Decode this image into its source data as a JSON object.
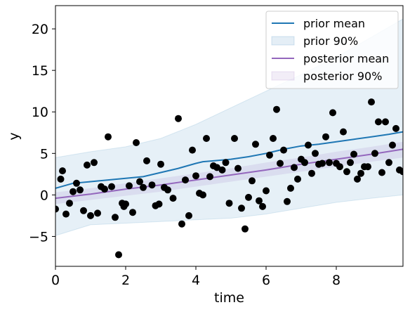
{
  "chart_data": {
    "type": "line",
    "title": "",
    "xlabel": "time",
    "ylabel": "y",
    "xlim": [
      0,
      9.9
    ],
    "ylim": [
      -8.6,
      22.8
    ],
    "xticks": [
      0,
      2,
      4,
      6,
      8
    ],
    "yticks": [
      -5,
      0,
      5,
      10,
      15,
      20
    ],
    "xtick_labels": [
      "0",
      "2",
      "4",
      "6",
      "8"
    ],
    "ytick_labels": [
      "−5",
      "0",
      "5",
      "10",
      "15",
      "20"
    ],
    "grid": false,
    "legend_position": "top-right",
    "colors": {
      "prior": "#1f77b4",
      "prior_band": "#1f77b4",
      "posterior": "#9467bd",
      "posterior_band": "#9467bd",
      "points": "#000000"
    },
    "legend": [
      {
        "label": "prior mean",
        "kind": "line",
        "color": "#1f77b4"
      },
      {
        "label": "prior 90%",
        "kind": "band",
        "color": "#1f77b4"
      },
      {
        "label": "posterior mean",
        "kind": "line",
        "color": "#9467bd"
      },
      {
        "label": "posterior 90%",
        "kind": "band",
        "color": "#9467bd"
      }
    ],
    "prior_mean": {
      "x": [
        0,
        0.5,
        1,
        1.5,
        2,
        2.5,
        3,
        3.5,
        4,
        4.2,
        4.5,
        5,
        5.5,
        6,
        6.5,
        7,
        7.5,
        8,
        8.5,
        9,
        9.5,
        9.9
      ],
      "y": [
        0.8,
        1.4,
        1.6,
        1.8,
        2.0,
        2.2,
        2.7,
        3.2,
        3.8,
        4.0,
        4.1,
        4.3,
        4.6,
        5.0,
        5.5,
        5.9,
        6.1,
        6.4,
        6.7,
        7.0,
        7.3,
        7.6
      ]
    },
    "prior_band": {
      "x": [
        0,
        1,
        2,
        3,
        4,
        5,
        6,
        7,
        8,
        9,
        9.9
      ],
      "lower": [
        -4.9,
        -3.6,
        -3.4,
        -3.2,
        -3.0,
        -2.8,
        -2.3,
        -1.6,
        -0.9,
        -0.4,
        0.0
      ],
      "upper": [
        4.5,
        5.2,
        5.8,
        6.8,
        8.5,
        10.5,
        12.5,
        14.5,
        16.6,
        19.0,
        21.2
      ]
    },
    "posterior_mean": {
      "x": [
        0,
        1,
        2,
        3,
        4,
        5,
        6,
        7,
        8,
        9,
        9.9
      ],
      "y": [
        -0.4,
        0.1,
        0.7,
        1.2,
        1.8,
        2.4,
        3.0,
        3.7,
        4.3,
        4.9,
        5.5
      ]
    },
    "posterior_band": {
      "x": [
        0,
        1,
        2,
        3,
        4,
        5,
        6,
        7,
        8,
        9,
        9.9
      ],
      "lower": [
        -1.1,
        -0.6,
        -0.1,
        0.4,
        1.0,
        1.6,
        2.2,
        2.8,
        3.4,
        4.0,
        4.5
      ],
      "upper": [
        0.3,
        0.8,
        1.4,
        2.0,
        2.6,
        3.2,
        3.9,
        4.5,
        5.2,
        5.8,
        6.4
      ]
    },
    "points": {
      "x": [
        0.0,
        0.15,
        0.2,
        0.3,
        0.4,
        0.5,
        0.6,
        0.7,
        0.8,
        0.9,
        1.0,
        1.1,
        1.2,
        1.3,
        1.4,
        1.5,
        1.6,
        1.7,
        1.8,
        1.9,
        1.95,
        2.0,
        2.1,
        2.2,
        2.3,
        2.4,
        2.5,
        2.6,
        2.75,
        2.85,
        2.95,
        3.0,
        3.1,
        3.2,
        3.35,
        3.5,
        3.6,
        3.7,
        3.8,
        3.9,
        4.0,
        4.1,
        4.2,
        4.3,
        4.4,
        4.5,
        4.6,
        4.75,
        4.85,
        4.95,
        5.1,
        5.2,
        5.3,
        5.4,
        5.5,
        5.6,
        5.7,
        5.8,
        5.9,
        6.0,
        6.1,
        6.2,
        6.3,
        6.4,
        6.5,
        6.6,
        6.7,
        6.8,
        6.9,
        7.0,
        7.1,
        7.2,
        7.3,
        7.4,
        7.5,
        7.6,
        7.7,
        7.8,
        7.9,
        8.0,
        8.1,
        8.2,
        8.3,
        8.4,
        8.5,
        8.6,
        8.7,
        8.8,
        8.9,
        9.0,
        9.1,
        9.2,
        9.3,
        9.4,
        9.5,
        9.6,
        9.7,
        9.8,
        9.9
      ],
      "y": [
        -1.7,
        1.9,
        2.9,
        -2.3,
        -1.0,
        0.4,
        1.4,
        0.6,
        -1.9,
        3.6,
        -2.5,
        3.9,
        -2.2,
        1.0,
        0.7,
        7.0,
        1.0,
        -2.7,
        -7.2,
        -1.0,
        -1.4,
        -1.1,
        1.1,
        -2.1,
        6.3,
        1.6,
        0.9,
        4.1,
        1.2,
        -1.3,
        -1.1,
        3.7,
        0.9,
        0.6,
        -0.4,
        9.2,
        -3.5,
        1.8,
        -2.5,
        5.4,
        2.3,
        0.2,
        0.0,
        6.8,
        2.2,
        3.5,
        3.3,
        3.0,
        3.9,
        -1.0,
        6.8,
        3.2,
        -1.6,
        -4.1,
        -0.3,
        1.7,
        6.1,
        -0.7,
        -1.4,
        0.5,
        4.8,
        6.8,
        10.3,
        3.8,
        5.4,
        -0.8,
        0.8,
        3.3,
        1.9,
        4.3,
        3.9,
        6.0,
        2.6,
        5.0,
        3.7,
        3.8,
        7.0,
        3.9,
        9.9,
        3.8,
        3.4,
        7.6,
        2.8,
        3.9,
        4.9,
        1.9,
        2.6,
        3.4,
        3.4,
        11.2,
        5.0,
        8.8,
        2.7,
        8.8,
        3.9,
        6.0,
        8.0,
        3.0,
        2.8
      ]
    }
  }
}
